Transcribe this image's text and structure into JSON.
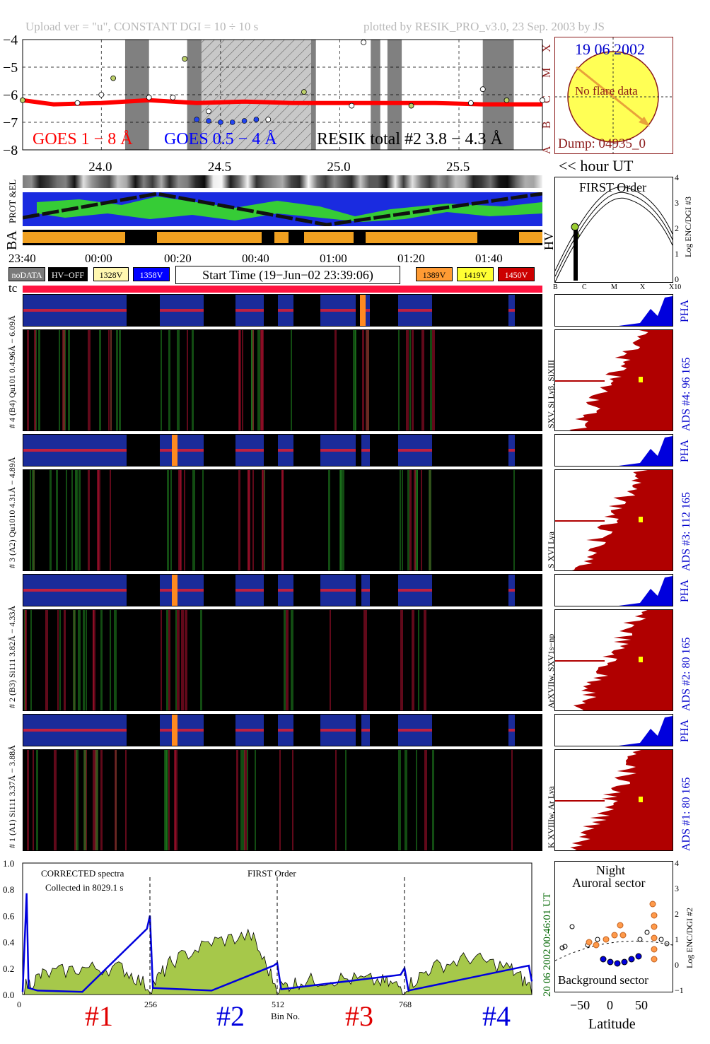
{
  "header": {
    "left": "Upload ver = \"u\", CONSTANT  DGI =  10 ÷  10 s",
    "right": "plotted by RESIK_PRO_v3.0, 23 Sep. 2003 by JS"
  },
  "goes_panel": {
    "ytick_labels": [
      "−4",
      "−5",
      "−6",
      "−7",
      "−8"
    ],
    "flare_class_labels": [
      "X",
      "M",
      "C",
      "B",
      "A"
    ],
    "xtick_labels": [
      "24.0",
      "24.5",
      "25.0",
      "25.5"
    ],
    "legend_goes18": "GOES 1 − 8 Å",
    "legend_goes054": "GOES 0.5 − 4 Å",
    "legend_resik": "RESIK total #2  3.8 − 4.3 Å",
    "xunit": "<< hour UT",
    "colors": {
      "goes18": "#ff0000",
      "goes054": "#0000ff",
      "resik": "#000000",
      "shade": "#808080"
    }
  },
  "sun_box": {
    "date": "19 06 2002",
    "note": "No flare data",
    "dump": "Dump: 04935_0"
  },
  "mid_labels": {
    "prot_el": "PROT &EL",
    "ba": "BA",
    "hv": "HV",
    "tc": "tc",
    "time_ticks": [
      "23:40",
      "00:00",
      "00:20",
      "00:40",
      "01:00",
      "01:20",
      "01:40"
    ],
    "start_time": "Start Time (19−Jun−02 23:39:06)"
  },
  "hv_legend": [
    {
      "label": "noDATA",
      "bg": "#7a7a7a",
      "fg": "#ffffff"
    },
    {
      "label": "HV−OFF",
      "bg": "#000000",
      "fg": "#ffffff"
    },
    {
      "label": "1328V",
      "bg": "#fff7b0",
      "fg": "#000000"
    },
    {
      "label": "1358V",
      "bg": "#0000ff",
      "fg": "#ffffff"
    },
    {
      "label": "1389V",
      "bg": "#ff9b33",
      "fg": "#000000"
    },
    {
      "label": "1419V",
      "bg": "#ffff33",
      "fg": "#000000"
    },
    {
      "label": "1450V",
      "bg": "#cc0000",
      "fg": "#ffffff"
    }
  ],
  "first_order_panel": {
    "title": "FIRST Order",
    "ylabel": "Log ENC/DGI #3",
    "yticks": [
      "4",
      "3",
      "2",
      "1",
      "0"
    ],
    "xticks": [
      "B",
      "C",
      "M",
      "X",
      "X10"
    ]
  },
  "channels": [
    {
      "id": "4",
      "left_label": "# 4 (B4) Qu101 0.4.96Å − 6.09Å",
      "line_label": "SXV, Si Lyβ, SiXIII",
      "ads": "ADS #4:   96 165",
      "pha": "PHA"
    },
    {
      "id": "3",
      "left_label": "# 3 (A2) Qu1010 4.31Å − 4.89Å",
      "line_label": "S XVI Lya",
      "ads": "ADS #3:   112 165",
      "pha": "PHA"
    },
    {
      "id": "2",
      "left_label": "# 2 (B3) Si111 3.82Å − 4.33Å",
      "line_label": "ArXVIIw, SXV1s−np",
      "ads": "ADS #2:   80 165",
      "pha": "PHA"
    },
    {
      "id": "1",
      "left_label": "# 1 (A1) Si111 3.37Å − 3.88Å",
      "line_label": "K XVIIIw, Ar Lya",
      "ads": "ADS #1:   80 165",
      "pha": "PHA"
    }
  ],
  "spectrum_panel": {
    "title_left": "CORRECTED spectra",
    "collected": "Collected in  8029.1 s",
    "title_mid": "FIRST Order",
    "yticks": [
      "1.0",
      "0.8",
      "0.6",
      "0.4",
      "0.2",
      "0.0"
    ],
    "xticks": [
      "0",
      "256",
      "512",
      "768"
    ],
    "xlabel": "Bin No.",
    "side_time": "00:46:01 UT",
    "side_date": "20 06 2002",
    "numbers": [
      "#1",
      "#2",
      "#3",
      "#4"
    ],
    "number_colors": [
      "#e00000",
      "#0000dd",
      "#e00000",
      "#0000dd"
    ]
  },
  "latitude_panel": {
    "title1": "Night",
    "title2": "Auroral sector",
    "bottom": "Background sector",
    "xticks": [
      "−50",
      "0",
      "50"
    ],
    "xlabel": "Latitude",
    "yticks": [
      "4",
      "3",
      "2",
      "1",
      "0",
      "−1"
    ],
    "ylabel": "Log ENC/DGI #2"
  },
  "chart_data": [
    {
      "type": "line",
      "title": "",
      "xlabel": "<< hour UT",
      "ylabel": "",
      "x_range": [
        23.67,
        25.85
      ],
      "ylim": [
        -8,
        -4
      ],
      "series": [
        {
          "name": "GOES 1 − 8 Å",
          "x": [
            23.67,
            23.8,
            24.0,
            24.2,
            24.4,
            24.6,
            24.8,
            25.0,
            25.2,
            25.4,
            25.6,
            25.85
          ],
          "values": [
            -6.2,
            -6.35,
            -6.3,
            -6.2,
            -6.3,
            -6.25,
            -6.3,
            -6.3,
            -6.3,
            -6.3,
            -6.35,
            -6.35
          ]
        },
        {
          "name": "GOES 0.5 − 4 Å",
          "x": [
            24.4,
            24.45,
            24.5,
            24.55,
            24.6,
            24.65
          ],
          "values": [
            -6.9,
            -6.95,
            -7.0,
            -7.0,
            -6.95,
            -6.9
          ]
        },
        {
          "name": "RESIK total #2  3.8 − 4.3 Å",
          "x": [
            23.67,
            23.9,
            24.0,
            24.05,
            24.2,
            24.3,
            24.35,
            24.45,
            24.7,
            24.85,
            25.05,
            25.1,
            25.3,
            25.55,
            25.6,
            25.7,
            25.85
          ],
          "values": [
            -6.2,
            -6.3,
            -6.0,
            -5.4,
            -6.1,
            -6.1,
            -4.7,
            -6.6,
            -6.9,
            -5.9,
            -6.4,
            -4.1,
            -6.4,
            -6.3,
            -5.8,
            -6.2,
            -6.2
          ]
        }
      ]
    },
    {
      "type": "area",
      "title": "",
      "xlabel": "Bin No.",
      "xlim": [
        0,
        1024
      ],
      "ylim": [
        0,
        1.0
      ],
      "series": [
        {
          "name": "",
          "x": [
            0,
            40,
            120,
            200,
            256,
            300,
            380,
            460,
            512,
            560,
            640,
            720,
            768,
            820,
            900,
            980,
            1024
          ],
          "values": [
            0.05,
            0.15,
            0.2,
            0.2,
            0.05,
            0.25,
            0.4,
            0.45,
            0.05,
            0.1,
            0.12,
            0.1,
            0.05,
            0.2,
            0.28,
            0.2,
            0.05
          ]
        },
        {
          "name": "",
          "x": [
            0,
            8,
            12,
            30,
            120,
            250,
            256,
            262,
            380,
            505,
            512,
            520,
            760,
            768,
            776,
            1018,
            1024
          ],
          "values": [
            0.02,
            0.77,
            0.05,
            0.03,
            0.02,
            0.5,
            0.6,
            0.05,
            0.03,
            0.22,
            0.24,
            0.04,
            0.15,
            0.2,
            0.03,
            0.22,
            0.1
          ]
        }
      ]
    }
  ]
}
